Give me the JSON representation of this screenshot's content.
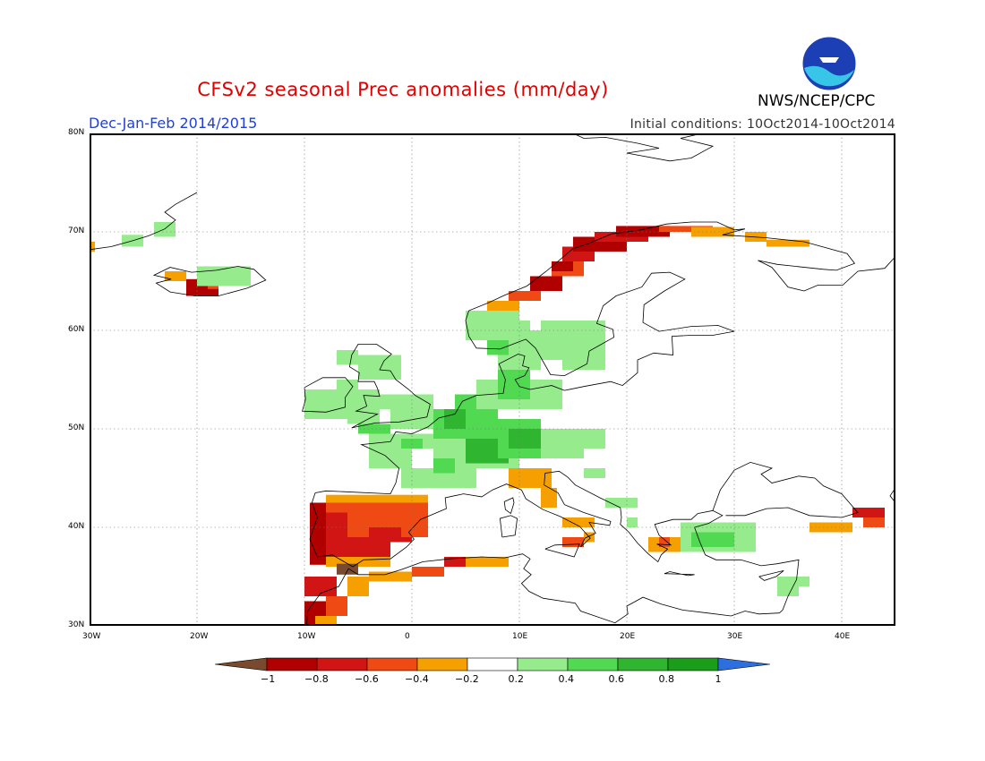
{
  "header": {
    "title": "CFSv2 seasonal Prec anomalies (mm/day)",
    "season": "Dec-Jan-Feb 2014/2015",
    "initial_conditions": "Initial conditions: 10Oct2014-10Oct2014",
    "agency": "NWS/NCEP/CPC"
  },
  "map": {
    "lon_range": [
      -30,
      45
    ],
    "lat_range": [
      30,
      80
    ],
    "y_labels": [
      "80N",
      "70N",
      "60N",
      "50N",
      "40N",
      "30N"
    ],
    "x_labels": [
      "30W",
      "20W",
      "10W",
      "0",
      "10E",
      "20E",
      "30E",
      "40E"
    ]
  },
  "legend": {
    "labels": [
      "-1",
      "-0.8",
      "-0.6",
      "-0.4",
      "-0.2",
      "0.2",
      "0.4",
      "0.6",
      "0.8",
      "1"
    ],
    "colors": {
      "below_-1": "#7a4a2e",
      "-1_-0.8": "#b00000",
      "-0.8_-0.6": "#d11414",
      "-0.6_-0.4": "#f04a14",
      "-0.4_-0.2": "#f5a000",
      "-0.2_0.2": "#ffffff",
      "0.2_0.4": "#96ec8c",
      "0.4_0.6": "#52d952",
      "0.6_0.8": "#2fb52f",
      "0.8_1": "#1a9e1a",
      "above_1": "#2e6fe0"
    }
  }
}
